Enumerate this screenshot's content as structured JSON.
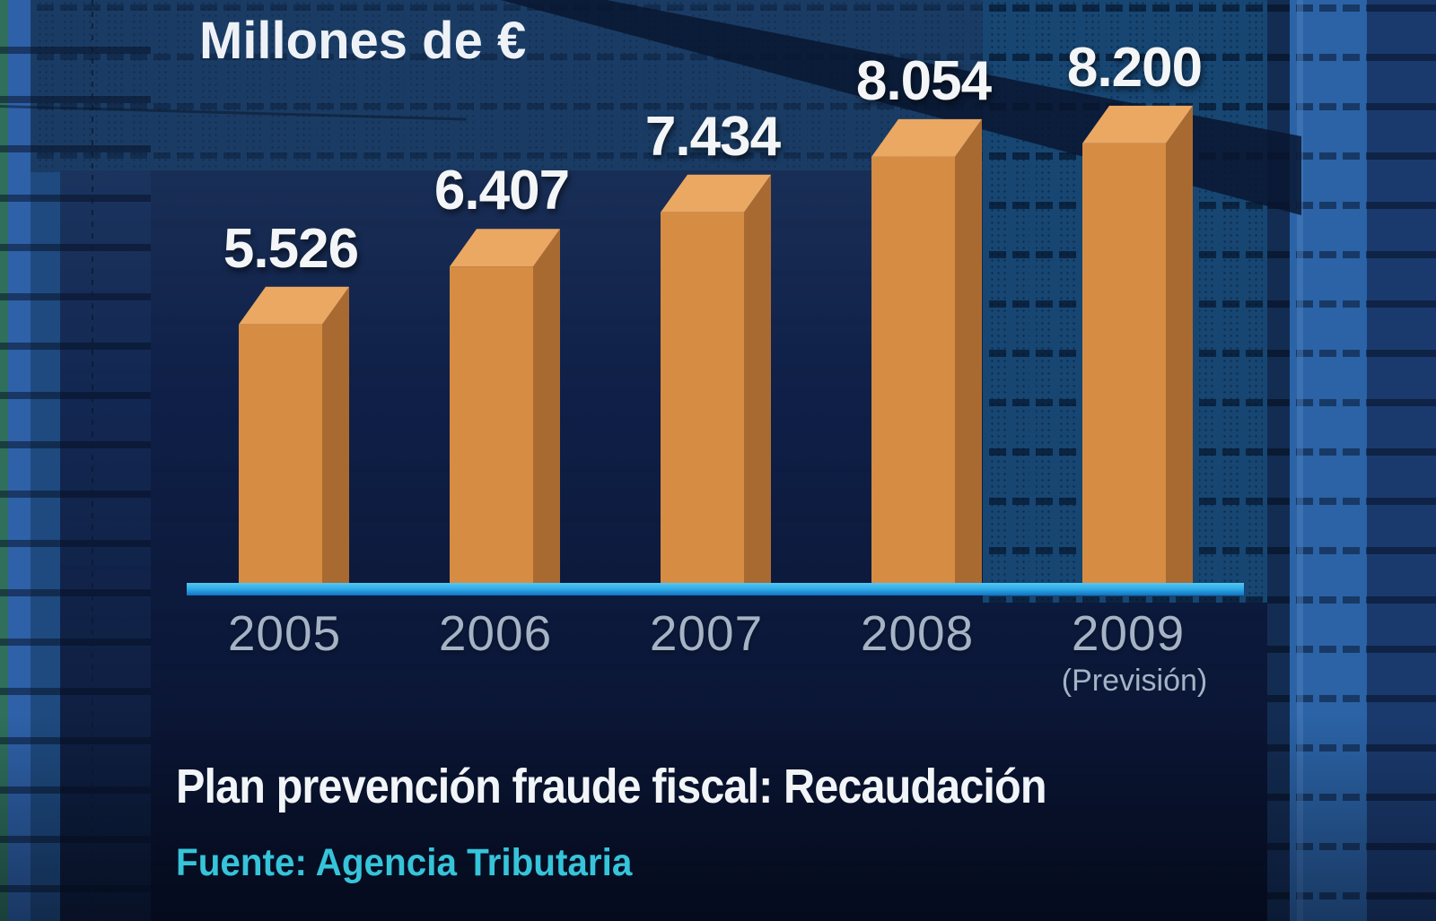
{
  "chart_data": {
    "type": "bar",
    "title": "Millones de €",
    "categories": [
      "2005",
      "2006",
      "2007",
      "2008",
      "2009"
    ],
    "category_note": "(Previsión)",
    "note_category_index": 4,
    "values": [
      5526,
      6407,
      7434,
      8054,
      8200
    ],
    "value_labels": [
      "5.526",
      "6.407",
      "7.434",
      "8.054",
      "8.200"
    ],
    "caption": "Plan prevención fraude fiscal: Recaudación",
    "source": "Fuente: Agencia Tributaria",
    "axis": {
      "x_baseline": true,
      "gridlines": false,
      "legend": "none"
    },
    "colors": {
      "bar_front": "#d68c43",
      "bar_top": "#eaa863",
      "bar_side": "#a96a31",
      "baseline": "#2fb0e8",
      "value_label": "#f3f5f7",
      "axis_label": "#a5b3c5",
      "source_text": "#35c4da",
      "panel_dark": "#0f2048",
      "band_slate": "#1a3c64"
    }
  }
}
